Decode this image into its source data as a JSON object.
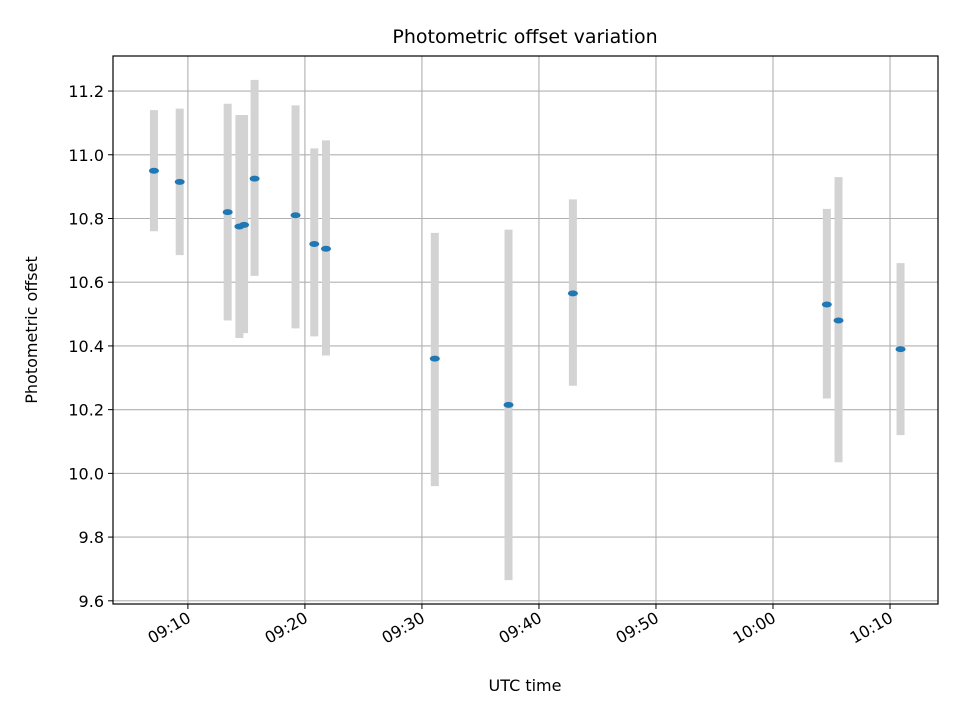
{
  "chart_data": {
    "type": "scatter",
    "title": "Photometric offset variation",
    "xlabel": "UTC time",
    "ylabel": "Photometric offset",
    "x_ticks": [
      {
        "label": "09:10",
        "minutes": 550
      },
      {
        "label": "09:20",
        "minutes": 560
      },
      {
        "label": "09:30",
        "minutes": 570
      },
      {
        "label": "09:40",
        "minutes": 580
      },
      {
        "label": "09:50",
        "minutes": 590
      },
      {
        "label": "10:00",
        "minutes": 600
      },
      {
        "label": "10:10",
        "minutes": 610
      }
    ],
    "y_ticks": [
      "9.6",
      "9.8",
      "10.0",
      "10.2",
      "10.4",
      "10.6",
      "10.8",
      "11.0",
      "11.2"
    ],
    "xlim": [
      543.6,
      614.1
    ],
    "ylim": [
      9.59,
      11.31
    ],
    "grid": true,
    "colors": {
      "point": "#1f77b4",
      "errorbar": "#d3d3d3",
      "grid": "#b0b0b0"
    },
    "points": [
      {
        "t": 547.1,
        "y": 10.95,
        "low": 10.76,
        "high": 11.14
      },
      {
        "t": 549.3,
        "y": 10.915,
        "low": 10.685,
        "high": 11.145
      },
      {
        "t": 553.4,
        "y": 10.82,
        "low": 10.48,
        "high": 11.16
      },
      {
        "t": 554.4,
        "y": 10.775,
        "low": 10.425,
        "high": 11.125
      },
      {
        "t": 554.8,
        "y": 10.78,
        "low": 10.44,
        "high": 11.125
      },
      {
        "t": 555.7,
        "y": 10.925,
        "low": 10.62,
        "high": 11.235
      },
      {
        "t": 559.2,
        "y": 10.81,
        "low": 10.455,
        "high": 11.155
      },
      {
        "t": 560.8,
        "y": 10.72,
        "low": 10.43,
        "high": 11.02
      },
      {
        "t": 561.8,
        "y": 10.705,
        "low": 10.37,
        "high": 11.045
      },
      {
        "t": 571.1,
        "y": 10.36,
        "low": 9.96,
        "high": 10.755
      },
      {
        "t": 577.4,
        "y": 10.215,
        "low": 9.665,
        "high": 10.765
      },
      {
        "t": 582.9,
        "y": 10.565,
        "low": 10.275,
        "high": 10.86
      },
      {
        "t": 604.6,
        "y": 10.53,
        "low": 10.235,
        "high": 10.83
      },
      {
        "t": 605.6,
        "y": 10.48,
        "low": 10.035,
        "high": 10.93
      },
      {
        "t": 610.9,
        "y": 10.39,
        "low": 10.12,
        "high": 10.66
      }
    ]
  }
}
